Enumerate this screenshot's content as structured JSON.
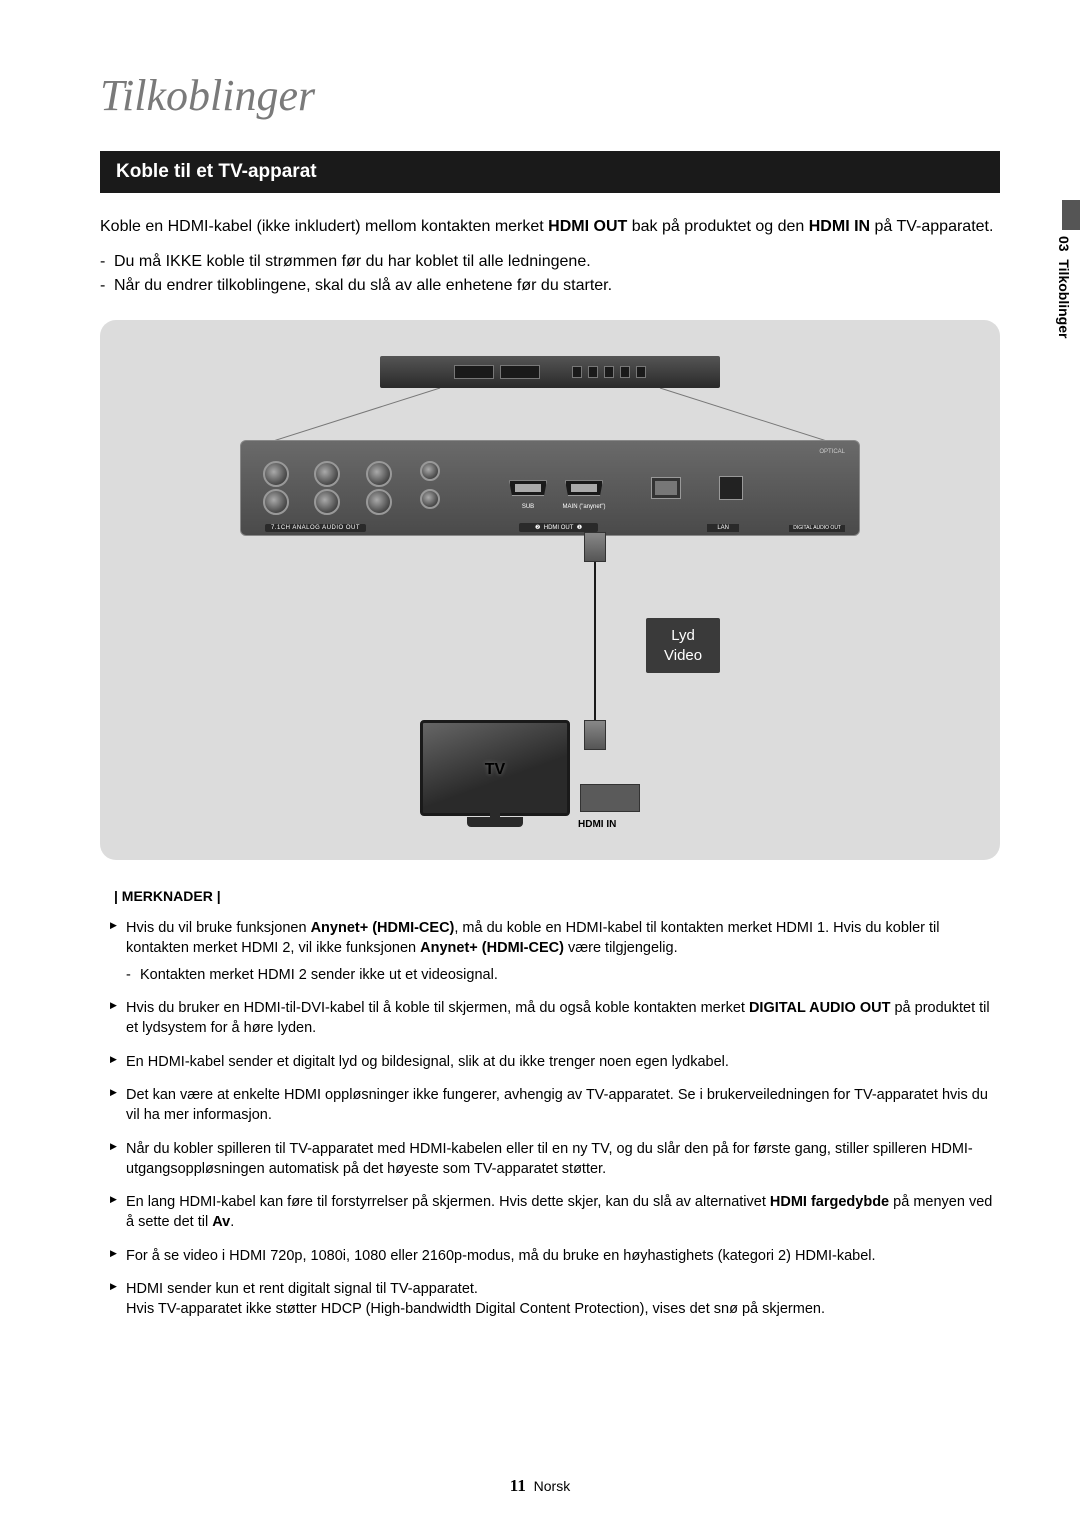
{
  "chapter_title": "Tilkoblinger",
  "section_title": "Koble til et TV-apparat",
  "side_tab": {
    "number": "03",
    "label": "Tilkoblinger"
  },
  "intro": {
    "line1_pre": "Koble en HDMI-kabel (ikke inkludert) mellom kontakten merket ",
    "line1_b1": "HDMI OUT",
    "line1_mid": " bak på produktet og den ",
    "line1_b2": "HDMI IN",
    "line1_post": " på TV-apparatet."
  },
  "dash_items": [
    "Du må IKKE koble til strømmen før du har koblet til alle ledningene.",
    "Når du endrer tilkoblingene, skal du slå av alle enhetene før du starter."
  ],
  "diagram": {
    "analog_label": "7.1CH ANALOG AUDIO OUT",
    "hdmi_sub": "SUB",
    "hdmi_main": "MAIN (\"anynet\")",
    "hdmi_out_label": "HDMI OUT",
    "hdmi_num2": "❷",
    "hdmi_num1": "❶",
    "lan_label": "LAN",
    "optical_label": "OPTICAL",
    "digital_audio": "DIGITAL AUDIO OUT",
    "cable_tag_line1": "Lyd",
    "cable_tag_line2": "Video",
    "tv_label": "TV",
    "hdmi_in": "HDMI IN",
    "colors": {
      "bg": "#dcdcdc",
      "panel": "#555555",
      "tag_bg": "#3a3a3a"
    }
  },
  "notes_header": "| MERKNADER |",
  "notes": [
    {
      "html": "Hvis du vil bruke funksjonen <b>Anynet+ (HDMI-CEC)</b>, må du koble en HDMI-kabel til kontakten merket HDMI 1. Hvis du kobler til kontakten merket HDMI 2, vil ikke funksjonen <b>Anynet+ (HDMI-CEC)</b> være tilgjengelig.",
      "sub": "Kontakten merket HDMI 2 sender ikke ut et videosignal."
    },
    {
      "html": "Hvis du bruker en HDMI-til-DVI-kabel til å koble til skjermen, må du også koble kontakten merket <b>DIGITAL AUDIO OUT</b> på produktet til et lydsystem for å høre lyden."
    },
    {
      "html": "En HDMI-kabel sender et digitalt lyd og bildesignal, slik at du ikke trenger noen egen lydkabel."
    },
    {
      "html": "Det kan være at enkelte HDMI oppløsninger ikke fungerer, avhengig av TV-apparatet. Se i brukerveiledningen for TV-apparatet hvis du vil ha mer informasjon."
    },
    {
      "html": "Når du kobler spilleren til TV-apparatet med HDMI-kabelen eller til en ny TV, og du slår den på for første gang, stiller spilleren HDMI-utgangsoppløsningen automatisk på det høyeste som TV-apparatet støtter."
    },
    {
      "html": "En lang HDMI-kabel kan føre til forstyrrelser på skjermen. Hvis dette skjer, kan du slå av alternativet <b>HDMI fargedybde</b> på menyen ved å sette det til <b>Av</b>."
    },
    {
      "html": "For å se video i HDMI 720p, 1080i, 1080 eller 2160p-modus, må du bruke en høyhastighets (kategori 2) HDMI-kabel."
    },
    {
      "html": "HDMI sender kun et rent digitalt signal til TV-apparatet.<br>Hvis TV-apparatet ikke støtter HDCP (High-bandwidth Digital Content Protection), vises det snø på skjermen."
    }
  ],
  "footer": {
    "page": "11",
    "lang": "Norsk"
  }
}
